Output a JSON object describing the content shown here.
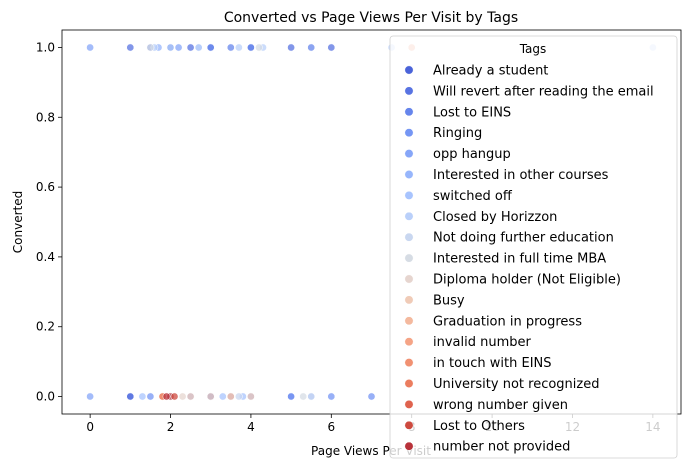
{
  "chart_data": {
    "type": "scatter",
    "title": "Converted vs Page Views Per Visit by Tags",
    "xlabel": "Page Views Per Visit",
    "ylabel": "Converted",
    "xlim": [
      -0.7,
      14.7
    ],
    "ylim": [
      -0.05,
      1.05
    ],
    "xticks": [
      0,
      2,
      4,
      6,
      8,
      10,
      12,
      14
    ],
    "yticks": [
      0.0,
      0.2,
      0.4,
      0.6,
      0.8,
      1.0
    ],
    "grid": false,
    "legend": {
      "title": "Tags",
      "position": "top-right"
    },
    "series": [
      {
        "name": "Already a student",
        "color": "#4a63d9",
        "points": [
          [
            1,
            0
          ],
          [
            2,
            0
          ],
          [
            3,
            0
          ]
        ]
      },
      {
        "name": "Will revert after reading the email",
        "color": "#5873e2",
        "points": [
          [
            1,
            1
          ],
          [
            1.5,
            1
          ],
          [
            2,
            1
          ],
          [
            2.5,
            1
          ],
          [
            3,
            1
          ],
          [
            4,
            1
          ],
          [
            5,
            1
          ],
          [
            6,
            1
          ],
          [
            1,
            0
          ],
          [
            2,
            0
          ],
          [
            3,
            0
          ],
          [
            5,
            0
          ]
        ]
      },
      {
        "name": "Lost to EINS",
        "color": "#6685ec",
        "points": [
          [
            2,
            1
          ],
          [
            3,
            1
          ],
          [
            3.5,
            1
          ],
          [
            4,
            1
          ],
          [
            5.5,
            1
          ],
          [
            2,
            0
          ]
        ]
      },
      {
        "name": "Ringing",
        "color": "#7596f4",
        "points": [
          [
            1.5,
            0
          ],
          [
            2,
            0
          ],
          [
            2.5,
            0
          ],
          [
            3,
            0
          ],
          [
            4,
            0
          ],
          [
            5,
            0
          ],
          [
            6,
            0
          ],
          [
            7,
            0
          ]
        ]
      },
      {
        "name": "opp hangup",
        "color": "#86a6f8",
        "points": [
          [
            0,
            1
          ],
          [
            0,
            0
          ],
          [
            2.2,
            1
          ]
        ]
      },
      {
        "name": "Interested in other courses",
        "color": "#97b6fc",
        "points": [
          [
            1.7,
            1
          ],
          [
            2.7,
            1
          ],
          [
            3.5,
            0
          ],
          [
            5.5,
            0
          ]
        ]
      },
      {
        "name": "switched off",
        "color": "#a8c4fe",
        "points": [
          [
            1.3,
            0
          ],
          [
            3.3,
            0
          ],
          [
            3.8,
            0
          ]
        ]
      },
      {
        "name": "Closed by Horizzon",
        "color": "#bad0fa",
        "points": [
          [
            1.6,
            1
          ],
          [
            2,
            1
          ],
          [
            2.7,
            1
          ],
          [
            3.7,
            1
          ],
          [
            4.3,
            1
          ],
          [
            7.5,
            1
          ],
          [
            14,
            1
          ]
        ]
      },
      {
        "name": "Not doing further education",
        "color": "#c9d7f0",
        "points": [
          [
            3.7,
            0
          ],
          [
            5.5,
            0
          ]
        ]
      },
      {
        "name": "Interested  in full time MBA",
        "color": "#d6dce4",
        "points": [
          [
            1.5,
            1
          ],
          [
            4.2,
            1
          ],
          [
            5.3,
            0
          ]
        ]
      },
      {
        "name": "Diploma holder (Not Eligible)",
        "color": "#e6d5cf",
        "points": [
          [
            2.3,
            0
          ]
        ]
      },
      {
        "name": "Busy",
        "color": "#f0cbb7",
        "points": [
          [
            2.5,
            0
          ],
          [
            3,
            0
          ],
          [
            4,
            0
          ]
        ]
      },
      {
        "name": "Graduation in progress",
        "color": "#f4b99e",
        "points": [
          [
            3.5,
            0
          ]
        ]
      },
      {
        "name": "invalid number",
        "color": "#f5a486",
        "points": [
          [
            1.8,
            0
          ]
        ]
      },
      {
        "name": "in touch with EINS",
        "color": "#f19172",
        "points": [
          [
            8,
            1
          ]
        ]
      },
      {
        "name": "University not recognized",
        "color": "#eb7d5f",
        "points": [
          [
            1.8,
            0
          ]
        ]
      },
      {
        "name": "wrong number given",
        "color": "#df634e",
        "points": [
          [
            2,
            0
          ]
        ]
      },
      {
        "name": "Lost to Others",
        "color": "#cd4a3f",
        "points": [
          [
            2.1,
            0
          ]
        ]
      },
      {
        "name": "number not provided",
        "color": "#b8323a",
        "points": [
          [
            1.9,
            0
          ]
        ]
      }
    ]
  }
}
